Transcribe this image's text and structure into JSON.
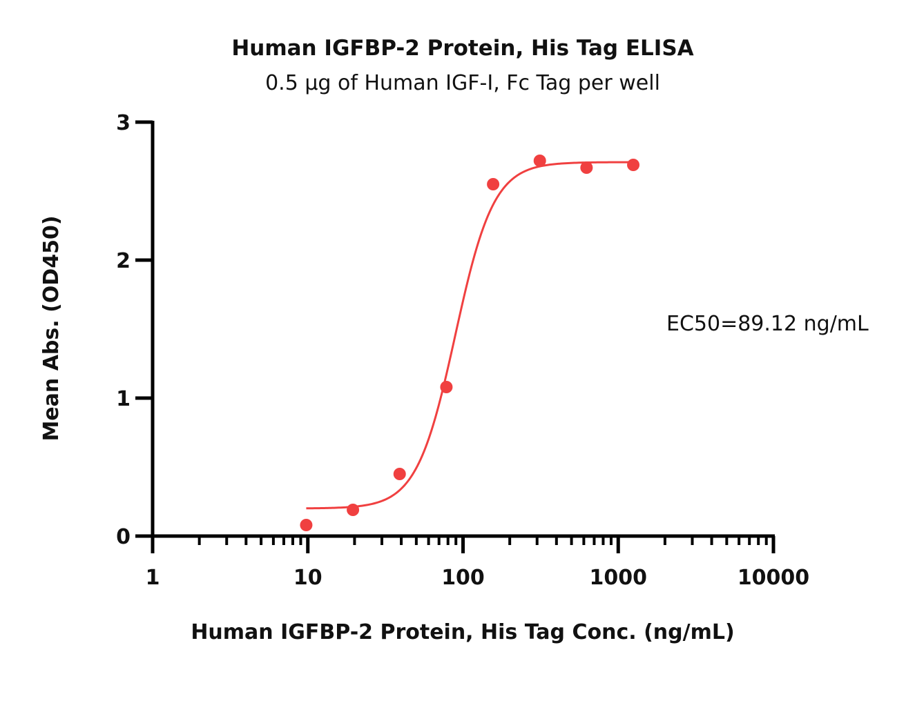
{
  "chart_data": {
    "type": "scatter",
    "title": "Human IGFBP-2 Protein, His Tag ELISA",
    "subtitle": "0.5 μg of Human IGF-I, Fc Tag per well",
    "xlabel": "Human IGFBP-2 Protein, His Tag Conc. (ng/mL)",
    "ylabel": "Mean Abs. (OD450)",
    "xscale": "log",
    "xlim": [
      1,
      10000
    ],
    "ylim": [
      0,
      3
    ],
    "x_ticks": [
      "1",
      "10",
      "100",
      "1000",
      "10000"
    ],
    "y_ticks": [
      "0",
      "1",
      "2",
      "3"
    ],
    "grid": false,
    "color": "#f04040",
    "series": [
      {
        "x": [
          9.766,
          19.53,
          39.06,
          78.13,
          156.3,
          312.5,
          625,
          1250
        ],
        "y": [
          0.08,
          0.19,
          0.45,
          1.08,
          2.55,
          2.72,
          2.67,
          2.69
        ]
      }
    ],
    "fit": {
      "type": "4PL",
      "bottom": 0.2,
      "top": 2.71,
      "ec50": 89.12,
      "hill": 3.5,
      "x_range": [
        9.766,
        1250
      ]
    },
    "annotation": "EC50=89.12 ng/mL"
  }
}
